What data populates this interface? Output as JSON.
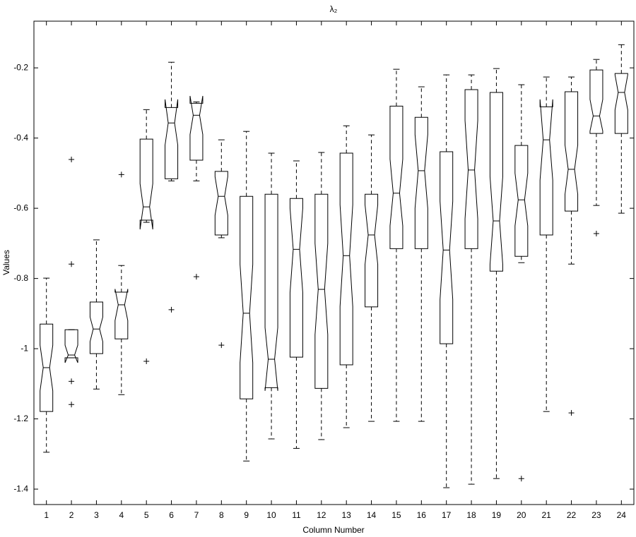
{
  "chart_data": {
    "type": "boxplot",
    "title": "λ₂",
    "xlabel": "Column Number",
    "ylabel": "Values",
    "xlim": [
      0.5,
      24.5
    ],
    "xticks": [
      1,
      2,
      3,
      4,
      5,
      6,
      7,
      8,
      9,
      10,
      11,
      12,
      13,
      14,
      15,
      16,
      17,
      18,
      19,
      20,
      21,
      22,
      23,
      24
    ],
    "ylim": [
      -1.444,
      -0.067
    ],
    "yticks": [
      -1.4,
      -1.2,
      -1,
      -0.8,
      -0.6,
      -0.4,
      -0.2
    ],
    "notched": true,
    "color": "#000000",
    "boxes": [
      {
        "whisker_low": -1.295,
        "q1": -1.179,
        "median": -1.054,
        "q3": -0.93,
        "whisker_high": -0.799,
        "notch": [
          -1.12,
          -0.99
        ],
        "outliers": []
      },
      {
        "whisker_low": -1.026,
        "q1": -1.026,
        "median": -1.018,
        "q3": -0.946,
        "whisker_high": -0.946,
        "notch": [
          -1.04,
          -0.99
        ],
        "outliers": [
          -0.461,
          -0.759,
          -1.093,
          -1.159
        ]
      },
      {
        "whisker_low": -1.115,
        "q1": -1.014,
        "median": -0.944,
        "q3": -0.867,
        "whisker_high": -0.69,
        "notch": [
          -0.98,
          -0.91
        ],
        "outliers": []
      },
      {
        "whisker_low": -1.131,
        "q1": -0.972,
        "median": -0.875,
        "q3": -0.839,
        "whisker_high": -0.763,
        "notch": [
          -0.92,
          -0.83
        ],
        "outliers": [
          -0.504
        ]
      },
      {
        "whisker_low": -0.64,
        "q1": -0.634,
        "median": -0.596,
        "q3": -0.403,
        "whisker_high": -0.319,
        "notch": [
          -0.66,
          -0.53
        ],
        "outliers": [
          -1.036
        ]
      },
      {
        "whisker_low": -0.522,
        "q1": -0.516,
        "median": -0.357,
        "q3": -0.313,
        "whisker_high": -0.184,
        "notch": [
          -0.42,
          -0.29
        ],
        "outliers": [
          -0.889
        ]
      },
      {
        "whisker_low": -0.522,
        "q1": -0.463,
        "median": -0.335,
        "q3": -0.301,
        "whisker_high": -0.297,
        "notch": [
          -0.39,
          -0.28
        ],
        "outliers": [
          -0.795
        ]
      },
      {
        "whisker_low": -0.684,
        "q1": -0.676,
        "median": -0.566,
        "q3": -0.495,
        "whisker_high": -0.405,
        "notch": [
          -0.62,
          -0.51
        ],
        "outliers": [
          -0.99
        ]
      },
      {
        "whisker_low": -1.32,
        "q1": -1.143,
        "median": -0.899,
        "q3": -0.566,
        "whisker_high": -0.381,
        "notch": [
          -1.04,
          -0.76
        ],
        "outliers": []
      },
      {
        "whisker_low": -1.257,
        "q1": -1.111,
        "median": -1.03,
        "q3": -0.56,
        "whisker_high": -0.443,
        "notch": [
          -1.12,
          -0.94
        ],
        "outliers": []
      },
      {
        "whisker_low": -1.284,
        "q1": -1.024,
        "median": -0.717,
        "q3": -0.572,
        "whisker_high": -0.465,
        "notch": [
          -0.84,
          -0.6
        ],
        "outliers": []
      },
      {
        "whisker_low": -1.259,
        "q1": -1.113,
        "median": -0.831,
        "q3": -0.56,
        "whisker_high": -0.441,
        "notch": [
          -0.96,
          -0.7
        ],
        "outliers": []
      },
      {
        "whisker_low": -1.225,
        "q1": -1.046,
        "median": -0.735,
        "q3": -0.443,
        "whisker_high": -0.365,
        "notch": [
          -0.88,
          -0.59
        ],
        "outliers": []
      },
      {
        "whisker_low": -1.207,
        "q1": -0.881,
        "median": -0.676,
        "q3": -0.56,
        "whisker_high": -0.391,
        "notch": [
          -0.76,
          -0.59
        ],
        "outliers": []
      },
      {
        "whisker_low": -1.207,
        "q1": -0.715,
        "median": -0.557,
        "q3": -0.309,
        "whisker_high": -0.204,
        "notch": [
          -0.65,
          -0.46
        ],
        "outliers": []
      },
      {
        "whisker_low": -1.207,
        "q1": -0.715,
        "median": -0.493,
        "q3": -0.341,
        "whisker_high": -0.254,
        "notch": [
          -0.6,
          -0.39
        ],
        "outliers": []
      },
      {
        "whisker_low": -1.396,
        "q1": -0.986,
        "median": -0.719,
        "q3": -0.439,
        "whisker_high": -0.22,
        "notch": [
          -0.86,
          -0.58
        ],
        "outliers": []
      },
      {
        "whisker_low": -1.386,
        "q1": -0.715,
        "median": -0.491,
        "q3": -0.262,
        "whisker_high": -0.22,
        "notch": [
          -0.63,
          -0.35
        ],
        "outliers": []
      },
      {
        "whisker_low": -1.37,
        "q1": -0.779,
        "median": -0.636,
        "q3": -0.27,
        "whisker_high": -0.202,
        "notch": [
          -0.76,
          -0.51
        ],
        "outliers": []
      },
      {
        "whisker_low": -0.755,
        "q1": -0.737,
        "median": -0.576,
        "q3": -0.421,
        "whisker_high": -0.248,
        "notch": [
          -0.65,
          -0.5
        ],
        "outliers": [
          -1.37
        ]
      },
      {
        "whisker_low": -1.179,
        "q1": -0.676,
        "median": -0.405,
        "q3": -0.311,
        "whisker_high": -0.226,
        "notch": [
          -0.52,
          -0.29
        ],
        "outliers": []
      },
      {
        "whisker_low": -0.759,
        "q1": -0.608,
        "median": -0.489,
        "q3": -0.268,
        "whisker_high": -0.226,
        "notch": [
          -0.56,
          -0.42
        ],
        "outliers": [
          -1.183
        ]
      },
      {
        "whisker_low": -0.592,
        "q1": -0.387,
        "median": -0.337,
        "q3": -0.206,
        "whisker_high": -0.176,
        "notch": [
          -0.38,
          -0.29
        ],
        "outliers": [
          -0.672
        ]
      },
      {
        "whisker_low": -0.614,
        "q1": -0.387,
        "median": -0.27,
        "q3": -0.216,
        "whisker_high": -0.134,
        "notch": [
          -0.32,
          -0.22
        ],
        "outliers": []
      }
    ]
  }
}
